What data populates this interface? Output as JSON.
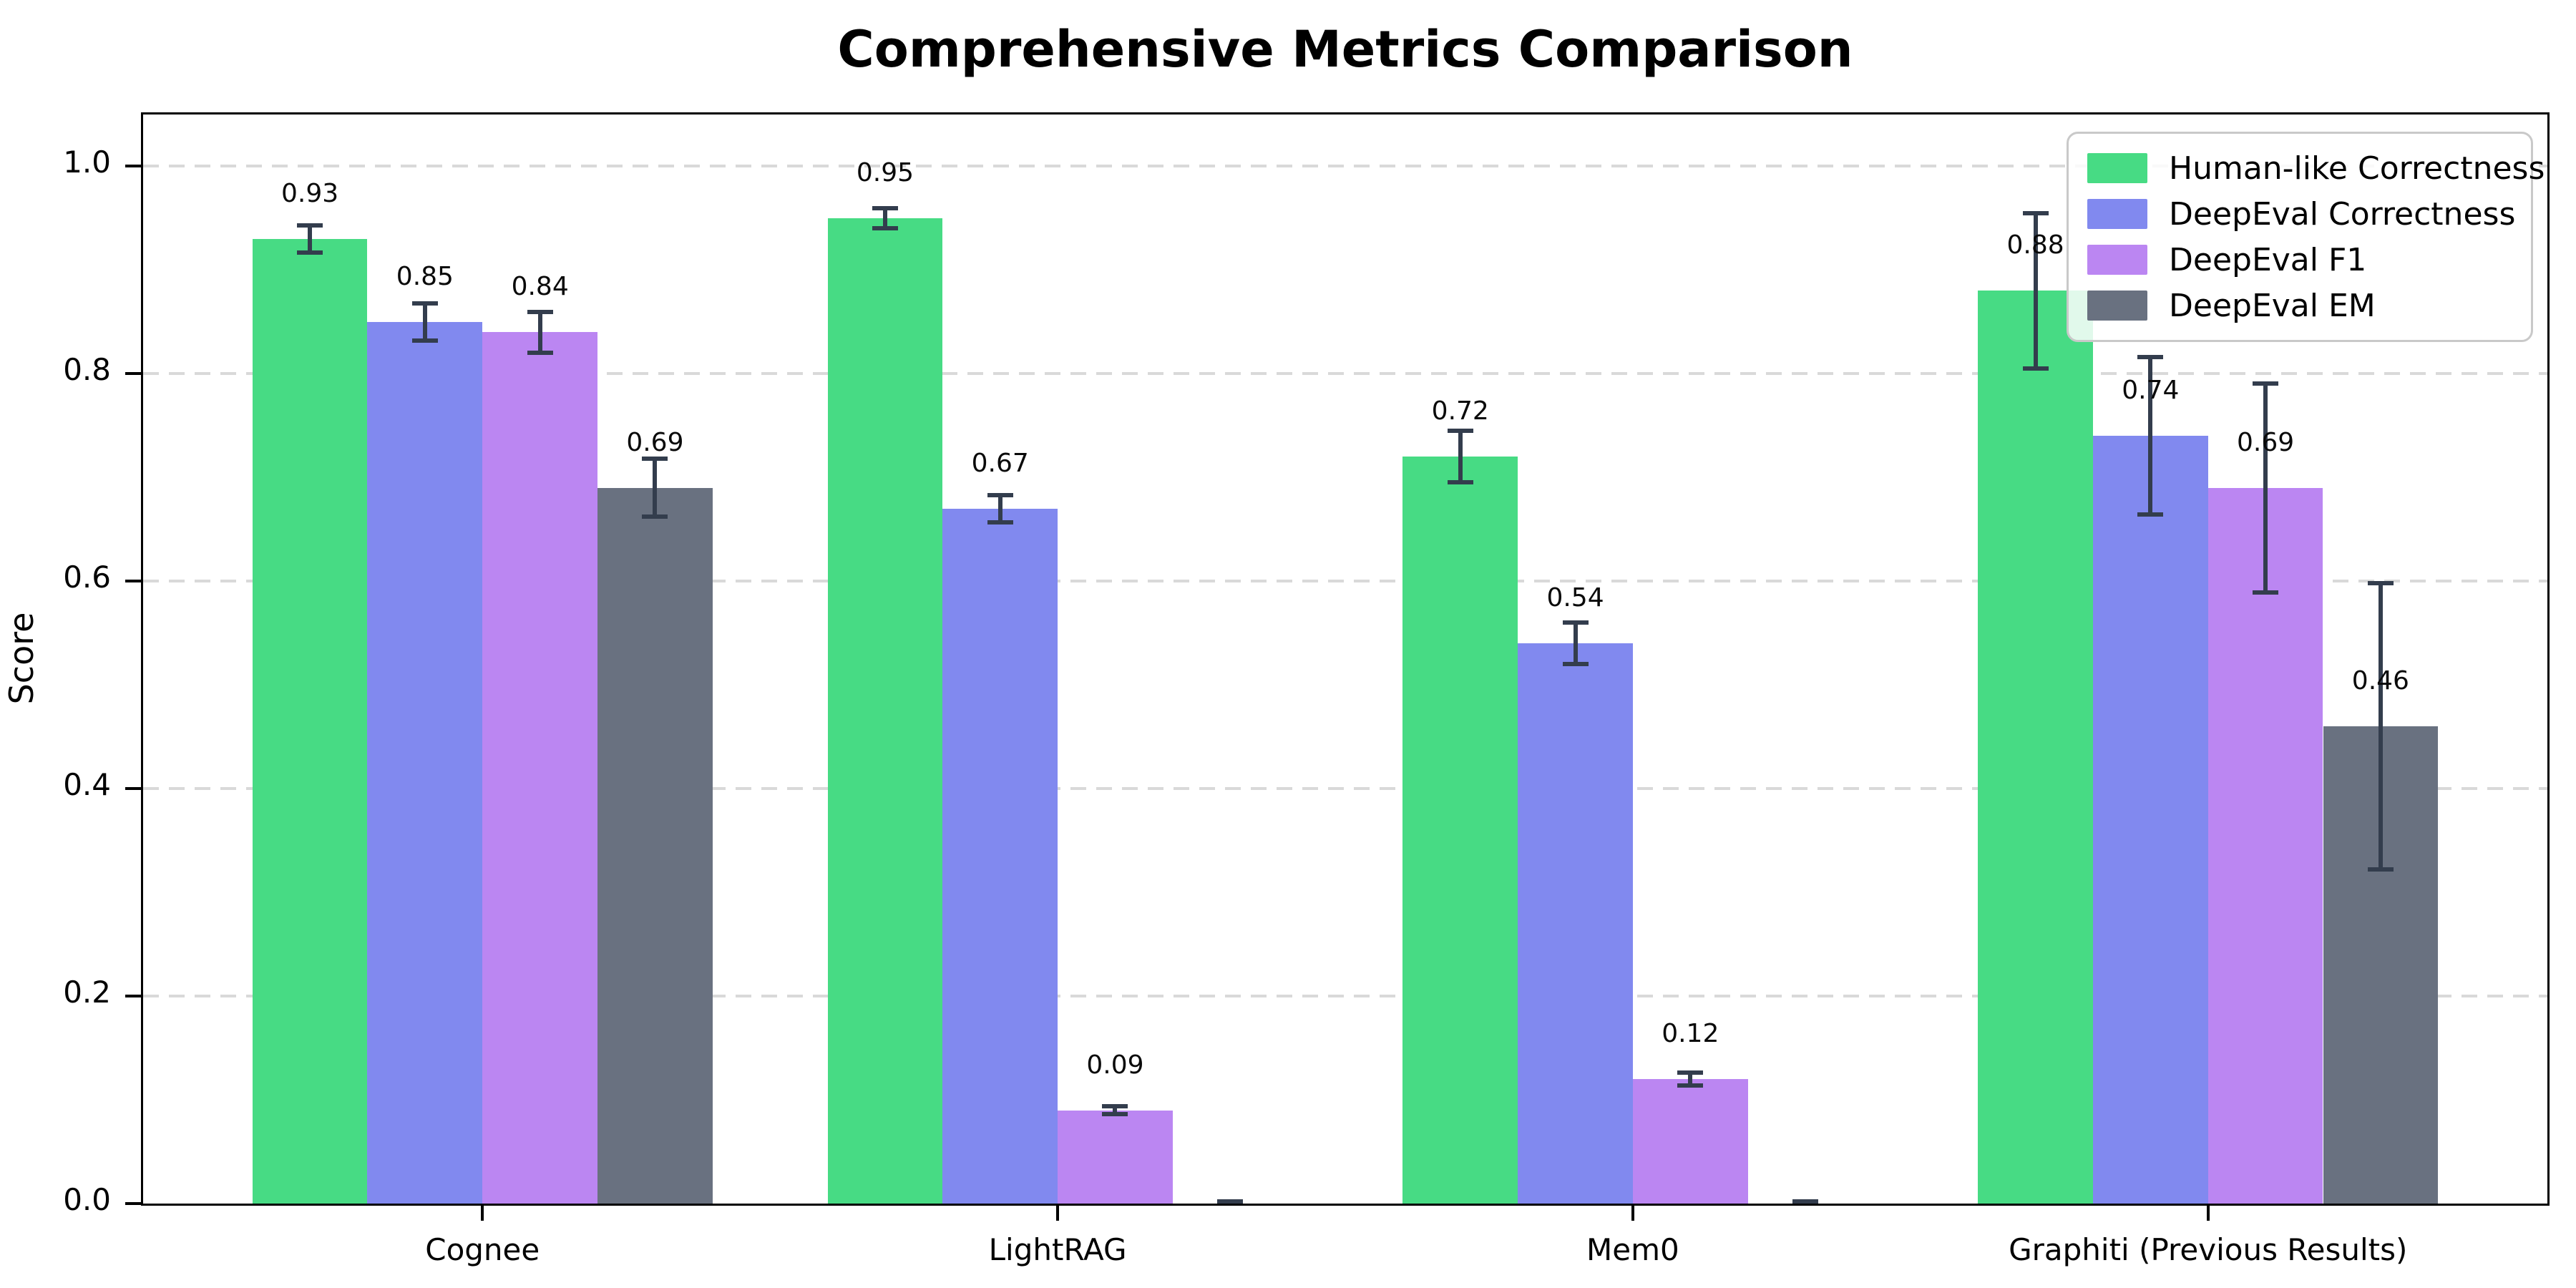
{
  "chart_data": {
    "type": "bar",
    "title": "Comprehensive Metrics Comparison",
    "ylabel": "Score",
    "xlabel": "",
    "ylim": [
      0,
      1.05
    ],
    "ytick_values": [
      0,
      0.2,
      0.4,
      0.6,
      0.8,
      1.0
    ],
    "ytick_labels": [
      "0.0",
      "0.2",
      "0.4",
      "0.6",
      "0.8",
      "1.0"
    ],
    "grid": "horizontal-dashed",
    "legend_position": "upper-right",
    "categories": [
      "Cognee",
      "LightRAG",
      "Mem0",
      "Graphiti (Previous Results)"
    ],
    "series": [
      {
        "name": "Human-like Correctness",
        "color": "#47db84",
        "values": [
          0.93,
          0.95,
          0.72,
          0.88
        ],
        "errors": [
          0.015,
          0.012,
          0.027,
          0.077
        ],
        "labels": [
          "0.93",
          "0.95",
          "0.72",
          "0.88"
        ]
      },
      {
        "name": "DeepEval Correctness",
        "color": "#8189ef",
        "values": [
          0.85,
          0.67,
          0.54,
          0.74
        ],
        "errors": [
          0.02,
          0.015,
          0.022,
          0.078
        ],
        "labels": [
          "0.85",
          "0.67",
          "0.54",
          "0.74"
        ]
      },
      {
        "name": "DeepEval F1",
        "color": "#bb86f2",
        "values": [
          0.84,
          0.09,
          0.12,
          0.69
        ],
        "errors": [
          0.022,
          0.006,
          0.008,
          0.103
        ],
        "labels": [
          "0.84",
          "0.09",
          "0.12",
          "0.69"
        ]
      },
      {
        "name": "DeepEval EM",
        "color": "#697180",
        "values": [
          0.69,
          0.0,
          0.0,
          0.46
        ],
        "errors": [
          0.03,
          0.004,
          0.004,
          0.14
        ],
        "labels": [
          "0.69",
          null,
          null,
          "0.46"
        ]
      }
    ],
    "error_bar_color": "#333d4d",
    "grid_color": "#d9d9d9",
    "axis_color": "#000000",
    "background_color": "#ffffff"
  }
}
